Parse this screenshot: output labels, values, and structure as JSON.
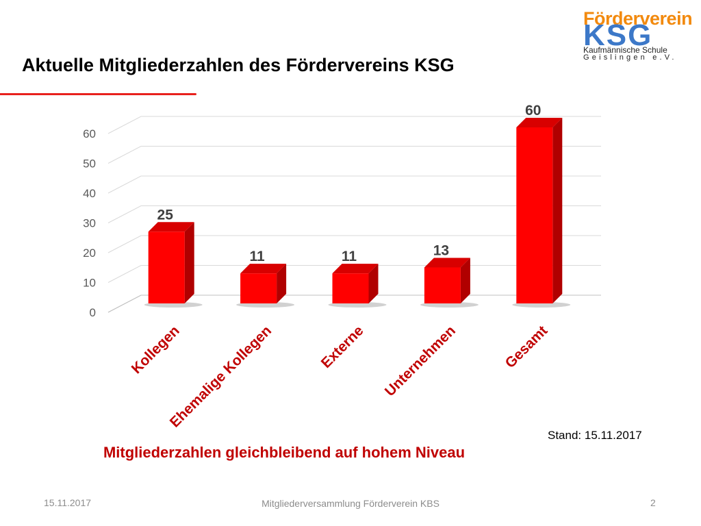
{
  "slide": {
    "title": "Aktuelle Mitgliederzahlen des Fördervereins KSG",
    "summary": "Mitgliederzahlen gleichbleibend auf hohem Niveau",
    "stand": "Stand: 15.11.2017"
  },
  "logo": {
    "word": "Förderverein",
    "letters": "KSG",
    "line1": "Kaufmännische Schule",
    "line2": "Geislingen e.V.",
    "colors": {
      "word": "#f28a0f",
      "letters": "#3c78c8"
    }
  },
  "footer": {
    "date": "15.11.2017",
    "center": "Mitgliederversammlung Förderverein KBS",
    "page": "2"
  },
  "chart_data": {
    "type": "bar",
    "style": "3d-column",
    "categories": [
      "Kollegen",
      "Ehemalige Kollegen",
      "Externe",
      "Unternehmen",
      "Gesamt"
    ],
    "values": [
      25,
      11,
      11,
      13,
      60
    ],
    "data_labels": [
      "25",
      "11",
      "11",
      "13",
      "60"
    ],
    "ylim": [
      0,
      60
    ],
    "yticks": [
      0,
      10,
      20,
      30,
      40,
      50,
      60
    ],
    "grid": true,
    "legend": "none",
    "title": "",
    "xlabel": "",
    "ylabel": "",
    "colors": {
      "bar_front": "#ff0000",
      "bar_side": "#b00000",
      "bar_top": "#d80000",
      "grid": "#d9d9d9",
      "tick_text": "#595959",
      "category_text": "#c00000"
    }
  },
  "accent_color": "#e8201c"
}
